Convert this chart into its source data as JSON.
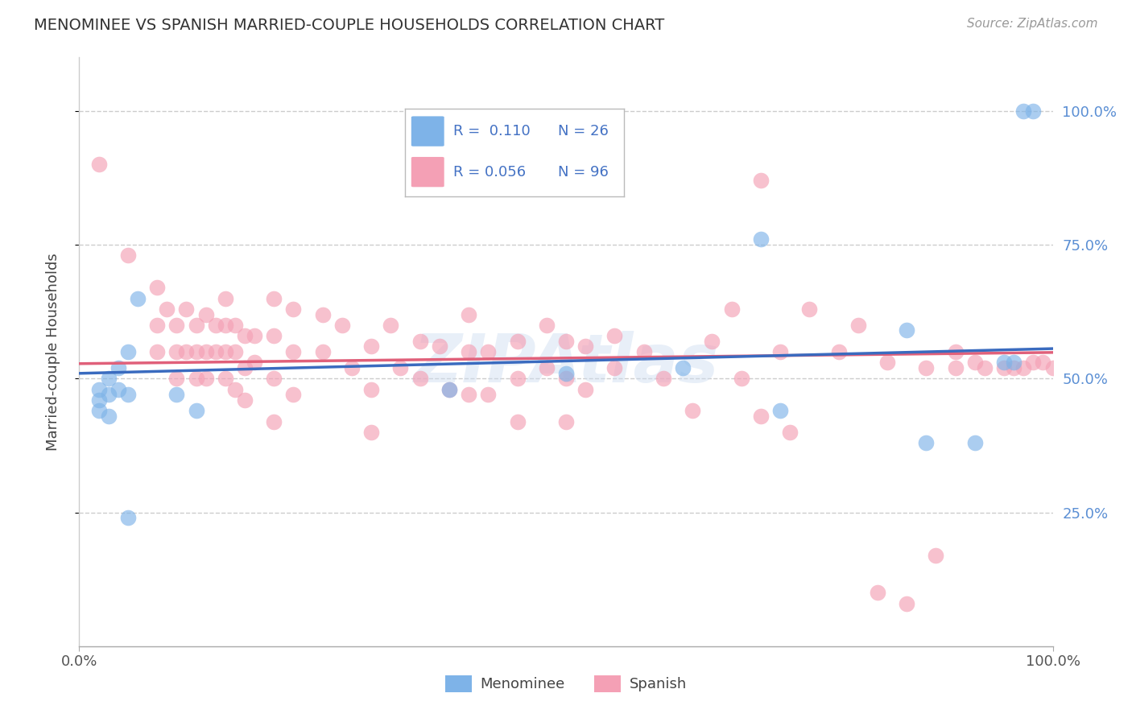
{
  "title": "MENOMINEE VS SPANISH MARRIED-COUPLE HOUSEHOLDS CORRELATION CHART",
  "source": "Source: ZipAtlas.com",
  "ylabel": "Married-couple Households",
  "ytick_labels": [
    "25.0%",
    "50.0%",
    "75.0%",
    "100.0%"
  ],
  "ytick_values": [
    0.25,
    0.5,
    0.75,
    1.0
  ],
  "xlim": [
    0.0,
    1.0
  ],
  "ylim": [
    0.0,
    1.1
  ],
  "menominee_color": "#7eb3e8",
  "spanish_color": "#f4a0b5",
  "menominee_line_color": "#3a6bbf",
  "spanish_line_color": "#e0607a",
  "legend_R_menominee": "R =  0.110",
  "legend_N_menominee": "N = 26",
  "legend_R_spanish": "R = 0.056",
  "legend_N_spanish": "N = 96",
  "menominee_R": 0.11,
  "spanish_R": 0.056,
  "watermark": "ZIPAtlas",
  "menominee_points": [
    [
      0.02,
      0.48
    ],
    [
      0.02,
      0.46
    ],
    [
      0.02,
      0.44
    ],
    [
      0.03,
      0.5
    ],
    [
      0.03,
      0.47
    ],
    [
      0.03,
      0.43
    ],
    [
      0.04,
      0.52
    ],
    [
      0.04,
      0.48
    ],
    [
      0.05,
      0.55
    ],
    [
      0.05,
      0.47
    ],
    [
      0.06,
      0.65
    ],
    [
      0.1,
      0.47
    ],
    [
      0.12,
      0.44
    ],
    [
      0.38,
      0.48
    ],
    [
      0.5,
      0.51
    ],
    [
      0.62,
      0.52
    ],
    [
      0.7,
      0.76
    ],
    [
      0.72,
      0.44
    ],
    [
      0.85,
      0.59
    ],
    [
      0.87,
      0.38
    ],
    [
      0.92,
      0.38
    ],
    [
      0.95,
      0.53
    ],
    [
      0.96,
      0.53
    ],
    [
      0.97,
      1.0
    ],
    [
      0.98,
      1.0
    ],
    [
      0.05,
      0.24
    ]
  ],
  "spanish_points": [
    [
      0.02,
      0.9
    ],
    [
      0.05,
      0.73
    ],
    [
      0.08,
      0.67
    ],
    [
      0.08,
      0.6
    ],
    [
      0.08,
      0.55
    ],
    [
      0.09,
      0.63
    ],
    [
      0.1,
      0.6
    ],
    [
      0.1,
      0.55
    ],
    [
      0.1,
      0.5
    ],
    [
      0.11,
      0.63
    ],
    [
      0.11,
      0.55
    ],
    [
      0.12,
      0.6
    ],
    [
      0.12,
      0.55
    ],
    [
      0.12,
      0.5
    ],
    [
      0.13,
      0.62
    ],
    [
      0.13,
      0.55
    ],
    [
      0.13,
      0.5
    ],
    [
      0.14,
      0.6
    ],
    [
      0.14,
      0.55
    ],
    [
      0.15,
      0.65
    ],
    [
      0.15,
      0.6
    ],
    [
      0.15,
      0.55
    ],
    [
      0.15,
      0.5
    ],
    [
      0.16,
      0.6
    ],
    [
      0.16,
      0.55
    ],
    [
      0.16,
      0.48
    ],
    [
      0.17,
      0.58
    ],
    [
      0.17,
      0.52
    ],
    [
      0.17,
      0.46
    ],
    [
      0.18,
      0.58
    ],
    [
      0.18,
      0.53
    ],
    [
      0.2,
      0.65
    ],
    [
      0.2,
      0.58
    ],
    [
      0.2,
      0.5
    ],
    [
      0.2,
      0.42
    ],
    [
      0.22,
      0.63
    ],
    [
      0.22,
      0.55
    ],
    [
      0.22,
      0.47
    ],
    [
      0.25,
      0.62
    ],
    [
      0.25,
      0.55
    ],
    [
      0.27,
      0.6
    ],
    [
      0.28,
      0.52
    ],
    [
      0.3,
      0.56
    ],
    [
      0.3,
      0.48
    ],
    [
      0.3,
      0.4
    ],
    [
      0.32,
      0.6
    ],
    [
      0.33,
      0.52
    ],
    [
      0.35,
      0.57
    ],
    [
      0.35,
      0.5
    ],
    [
      0.37,
      0.56
    ],
    [
      0.38,
      0.48
    ],
    [
      0.4,
      0.62
    ],
    [
      0.4,
      0.55
    ],
    [
      0.4,
      0.47
    ],
    [
      0.42,
      0.55
    ],
    [
      0.42,
      0.47
    ],
    [
      0.45,
      0.57
    ],
    [
      0.45,
      0.5
    ],
    [
      0.45,
      0.42
    ],
    [
      0.48,
      0.6
    ],
    [
      0.48,
      0.52
    ],
    [
      0.5,
      0.57
    ],
    [
      0.5,
      0.5
    ],
    [
      0.5,
      0.42
    ],
    [
      0.52,
      0.56
    ],
    [
      0.52,
      0.48
    ],
    [
      0.55,
      0.58
    ],
    [
      0.55,
      0.52
    ],
    [
      0.58,
      0.55
    ],
    [
      0.6,
      0.5
    ],
    [
      0.63,
      0.44
    ],
    [
      0.65,
      0.57
    ],
    [
      0.67,
      0.63
    ],
    [
      0.68,
      0.5
    ],
    [
      0.7,
      0.87
    ],
    [
      0.7,
      0.43
    ],
    [
      0.72,
      0.55
    ],
    [
      0.73,
      0.4
    ],
    [
      0.75,
      0.63
    ],
    [
      0.78,
      0.55
    ],
    [
      0.8,
      0.6
    ],
    [
      0.82,
      0.1
    ],
    [
      0.83,
      0.53
    ],
    [
      0.85,
      0.08
    ],
    [
      0.87,
      0.52
    ],
    [
      0.88,
      0.17
    ],
    [
      0.9,
      0.55
    ],
    [
      0.9,
      0.52
    ],
    [
      0.92,
      0.53
    ],
    [
      0.93,
      0.52
    ],
    [
      0.95,
      0.52
    ],
    [
      0.96,
      0.52
    ],
    [
      0.97,
      0.52
    ],
    [
      0.98,
      0.53
    ],
    [
      0.99,
      0.53
    ],
    [
      1.0,
      0.52
    ]
  ]
}
